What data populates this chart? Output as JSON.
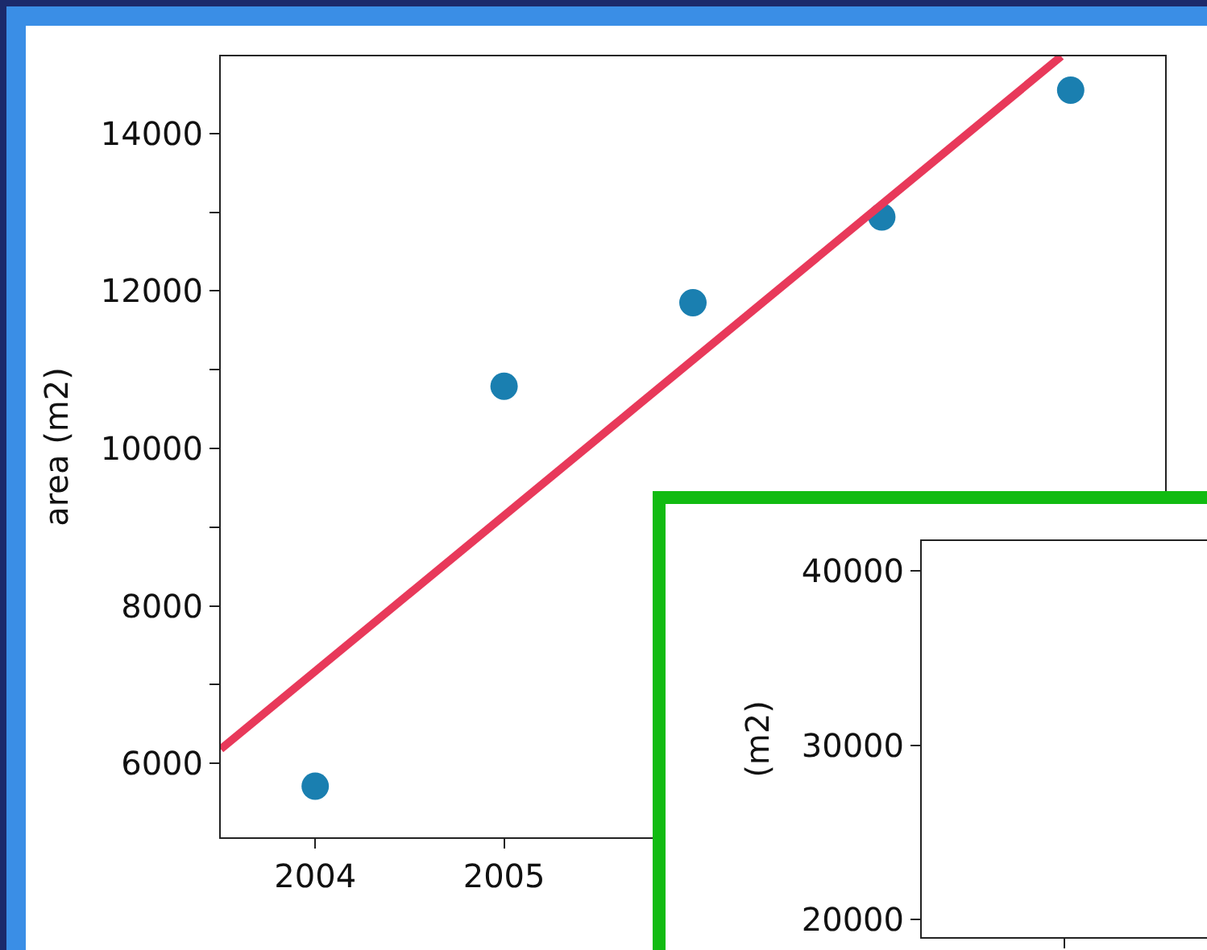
{
  "chart_data": [
    {
      "type": "scatter",
      "ylabel": "area (m2)",
      "xlim": [
        2003.5,
        2008.5
      ],
      "xticks": [
        2004,
        2005
      ],
      "ylim": [
        5060,
        14980
      ],
      "yticks": [
        6000,
        {
          "value": 7000,
          "label": null
        },
        8000,
        {
          "value": 9000,
          "label": null
        },
        10000,
        {
          "value": 11000,
          "label": null
        },
        12000,
        {
          "value": 13000,
          "label": null
        },
        14000
      ],
      "series": [
        {
          "type": "scatter",
          "marker": "circle",
          "color": "#1a7fb0",
          "x": [
            2004,
            2005,
            2006,
            2007,
            2008
          ],
          "values": [
            5710,
            10790,
            11850,
            12940,
            14550
          ]
        },
        {
          "type": "line",
          "color": "#e8395a",
          "x": [
            2003.5,
            2007.95
          ],
          "values": [
            6180,
            14980
          ]
        }
      ]
    },
    {
      "type": "scatter",
      "ylabel": "(m2)",
      "tick_labels": "y",
      "categories": [
        null
      ],
      "ylim": [
        19000,
        41700
      ],
      "yticks": [
        20000,
        30000,
        40000
      ]
    }
  ]
}
